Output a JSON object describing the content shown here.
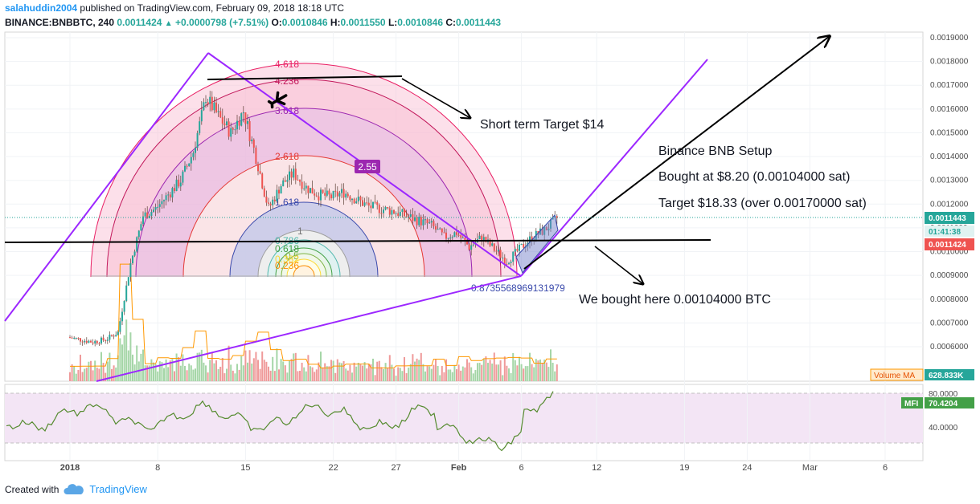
{
  "header": {
    "user": "salahuddin2004",
    "published": "published on TradingView.com, February 09, 2018 18:18 UTC",
    "symbol": "BINANCE:BNBBTC, 240",
    "last": "0.0011424",
    "arrow": "▲",
    "change": "+0.0000798 (+7.51%)",
    "o_label": "O:",
    "o_val": "0.0010846",
    "h_label": "H:",
    "h_val": "0.0011550",
    "l_label": "L:",
    "l_val": "0.0010846",
    "c_label": "C:",
    "c_val": "0.0011443"
  },
  "price_axis": {
    "ticks": [
      "0.0019000",
      "0.0018000",
      "0.0017000",
      "0.0016000",
      "0.0015000",
      "0.0014000",
      "0.0013000",
      "0.0012000",
      "0.0011000",
      "0.0010000",
      "0.0009000",
      "0.0008000",
      "0.0007000",
      "0.0006000"
    ],
    "tags": {
      "last_close": "0.0011443",
      "countdown": "01:41:38",
      "price": "0.0011424"
    }
  },
  "time_axis": {
    "ticks": [
      "2018",
      "8",
      "15",
      "22",
      "27",
      "Feb",
      "6",
      "12",
      "19",
      "24",
      "Mar",
      "6"
    ]
  },
  "volume": {
    "label": "Volume MA",
    "value": "628.833K"
  },
  "mfi": {
    "label": "MFI",
    "value": "70.4204",
    "ticks": [
      "80.0000",
      "40.0000"
    ]
  },
  "fib_levels": [
    "4.618",
    "4.236",
    "3.618",
    "2.618",
    "1.618",
    "1",
    "0.786",
    "0.618",
    "0.5",
    "0.382",
    "0.236"
  ],
  "fib_extra": "0.8735568969131979",
  "badge": "2.55",
  "annotations": {
    "short_target": "Short term Target $14",
    "setup_title": "Binance BNB Setup",
    "bought_at": "Bought at $8.20 (0.00104000 sat)",
    "target": "Target $18.33 (over 0.00170000 sat)",
    "bought_here": "We bought here 0.00104000 BTC"
  },
  "footer": {
    "created": "Created with",
    "brand": "TradingView"
  },
  "chart_data": {
    "type": "line",
    "title": "BINANCE:BNBBTC, 240",
    "xlabel": "",
    "ylabel": "",
    "ylim": [
      0.00055,
      0.00192
    ],
    "series": [
      {
        "values": [
          [
            "2018-01-01",
            0.00064
          ],
          [
            "2018-01-02",
            0.00063
          ],
          [
            "2018-01-03",
            0.00062
          ],
          [
            "2018-01-04",
            0.00063
          ],
          [
            "2018-01-05",
            0.00066
          ],
          [
            "2018-01-06",
            0.00095
          ],
          [
            "2018-01-07",
            0.00115
          ],
          [
            "2018-01-08",
            0.00118
          ],
          [
            "2018-01-09",
            0.00124
          ],
          [
            "2018-01-10",
            0.0013
          ],
          [
            "2018-01-11",
            0.00142
          ],
          [
            "2018-01-12",
            0.00165
          ],
          [
            "2018-01-13",
            0.00157
          ],
          [
            "2018-01-14",
            0.0015
          ],
          [
            "2018-01-15",
            0.00159
          ],
          [
            "2018-01-16",
            0.0014
          ],
          [
            "2018-01-17",
            0.00118
          ],
          [
            "2018-01-18",
            0.00128
          ],
          [
            "2018-01-19",
            0.00133
          ],
          [
            "2018-01-20",
            0.00127
          ],
          [
            "2018-01-21",
            0.00124
          ],
          [
            "2018-01-22",
            0.00123
          ],
          [
            "2018-01-23",
            0.00125
          ],
          [
            "2018-01-24",
            0.00122
          ],
          [
            "2018-01-25",
            0.00119
          ],
          [
            "2018-01-26",
            0.00118
          ],
          [
            "2018-01-27",
            0.00117
          ],
          [
            "2018-01-28",
            0.00115
          ],
          [
            "2018-01-29",
            0.00113
          ],
          [
            "2018-01-30",
            0.00111
          ],
          [
            "2018-01-31",
            0.00106
          ],
          [
            "2018-02-01",
            0.00108
          ],
          [
            "2018-02-02",
            0.00102
          ],
          [
            "2018-02-03",
            0.00106
          ],
          [
            "2018-02-04",
            0.00101
          ],
          [
            "2018-02-05",
            0.00096
          ],
          [
            "2018-02-06",
            0.00101
          ],
          [
            "2018-02-07",
            0.00106
          ],
          [
            "2018-02-08",
            0.00109
          ],
          [
            "2018-02-09",
            0.00114
          ]
        ]
      }
    ]
  }
}
